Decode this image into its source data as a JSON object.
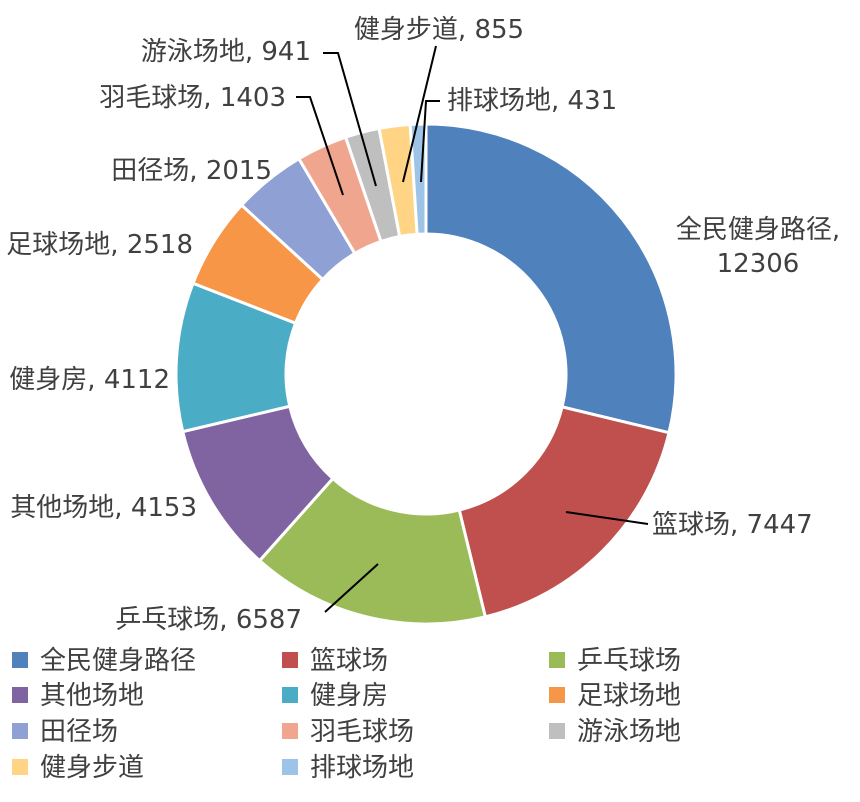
{
  "chart_data": {
    "type": "pie",
    "subtype": "donut",
    "categories": [
      "全民健身路径",
      "篮球场",
      "乒乓球场",
      "其他场地",
      "健身房",
      "足球场地",
      "田径场",
      "羽毛球场",
      "游泳场地",
      "健身步道",
      "排球场地"
    ],
    "values": [
      12306,
      7447,
      6587,
      4153,
      4112,
      2518,
      2015,
      1403,
      941,
      855,
      431
    ],
    "colors": [
      "#4F81BD",
      "#C0504D",
      "#9BBB59",
      "#8064A2",
      "#4BACC6",
      "#F79646",
      "#8EA0D4",
      "#F0A58F",
      "#BFBFBF",
      "#FFD585",
      "#9DC3E6"
    ],
    "data_labels": [
      {
        "line1": "全民健身路径,",
        "line2": "12306"
      },
      {
        "line1": "篮球场, 7447"
      },
      {
        "line1": "乒乓球场, 6587"
      },
      {
        "line1": "其他场地, 4153"
      },
      {
        "line1": "健身房, 4112"
      },
      {
        "line1": "足球场地, 2518"
      },
      {
        "line1": "田径场, 2015"
      },
      {
        "line1": "羽毛球场, 1403"
      },
      {
        "line1": "游泳场地, 941"
      },
      {
        "line1": "健身步道, 855"
      },
      {
        "line1": "排球场地, 431"
      }
    ],
    "legend_position": "bottom"
  }
}
